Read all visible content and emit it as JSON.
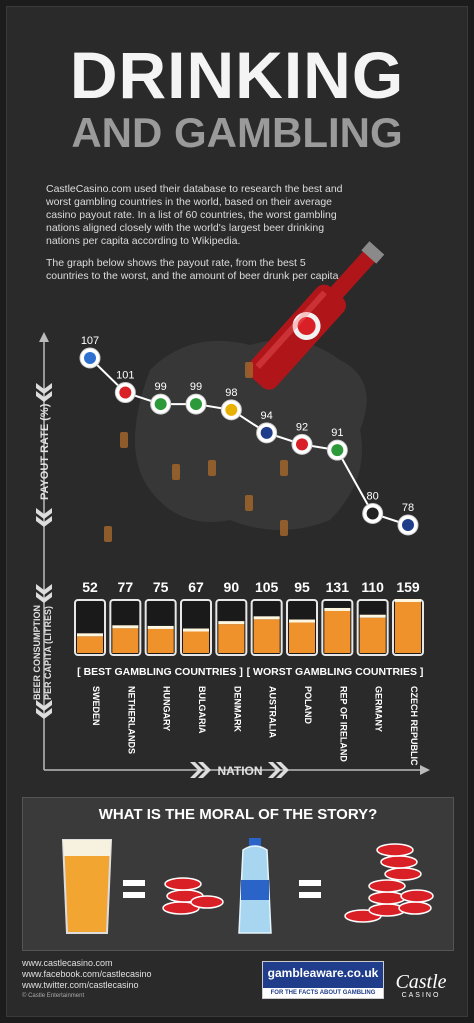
{
  "title_line1": "DRINKING",
  "title_line2": "AND GAMBLING",
  "intro_paragraph_1": "CastleCasino.com used their database to research the best and worst gambling countries in the world, based on their average casino payout rate. In a list of 60 countries, the worst gambling nations aligned closely with the world's largest beer drinking nations per capita according to Wikipedia.",
  "intro_paragraph_2": "The graph below shows the payout rate, from the best 5 countries to the worst, and the amount of beer drunk per capita.",
  "y_axis_label": "PAYOUT RATE (%)",
  "beer_axis_label": "BEER CONSUMPTION PER CAPITA (LITRES)",
  "beer_axis_label_line1": "BEER CONSUMPTION",
  "beer_axis_label_line2": "PER CAPITA (LITRES)",
  "x_axis_label": "NATION",
  "group_best": "[ BEST GAMBLING COUNTRIES ]",
  "group_worst": "[ WORST GAMBLING COUNTRIES ]",
  "moral_title": "WHAT IS THE MORAL OF THE STORY?",
  "footer_links": [
    "www.castlecasino.com",
    "www.facebook.com/castlecasino",
    "www.twitter.com/castlecasino"
  ],
  "copyright": "© Castle Entertainment",
  "gambleaware_name": "gambleaware.co.uk",
  "gambleaware_tagline": "FOR THE FACTS ABOUT GAMBLING",
  "castle_logo_name": "Castle",
  "castle_logo_sub": "CASINO",
  "colors": {
    "background": "#2a2a2a",
    "beer": "#f0922b",
    "glass": "#e8e8e8",
    "line": "#ffffff",
    "chip_red": "#d92027"
  },
  "chart_data": {
    "type": "line",
    "categories": [
      "SWEDEN",
      "NETHERLANDS",
      "HUNGARY",
      "BULGARIA",
      "DENMARK",
      "AUSTRALIA",
      "POLAND",
      "REP OF IRELAND",
      "GERMANY",
      "CZECH REPUBLIC"
    ],
    "series": [
      {
        "values": [
          107,
          101,
          99,
          99,
          98,
          94,
          92,
          91,
          80,
          78
        ]
      },
      {
        "values": [
          52,
          77,
          75,
          67,
          90,
          105,
          95,
          131,
          110,
          159
        ]
      }
    ],
    "ylabel": "PAYOUT RATE (%)",
    "xlabel": "NATION",
    "grid": false
  }
}
